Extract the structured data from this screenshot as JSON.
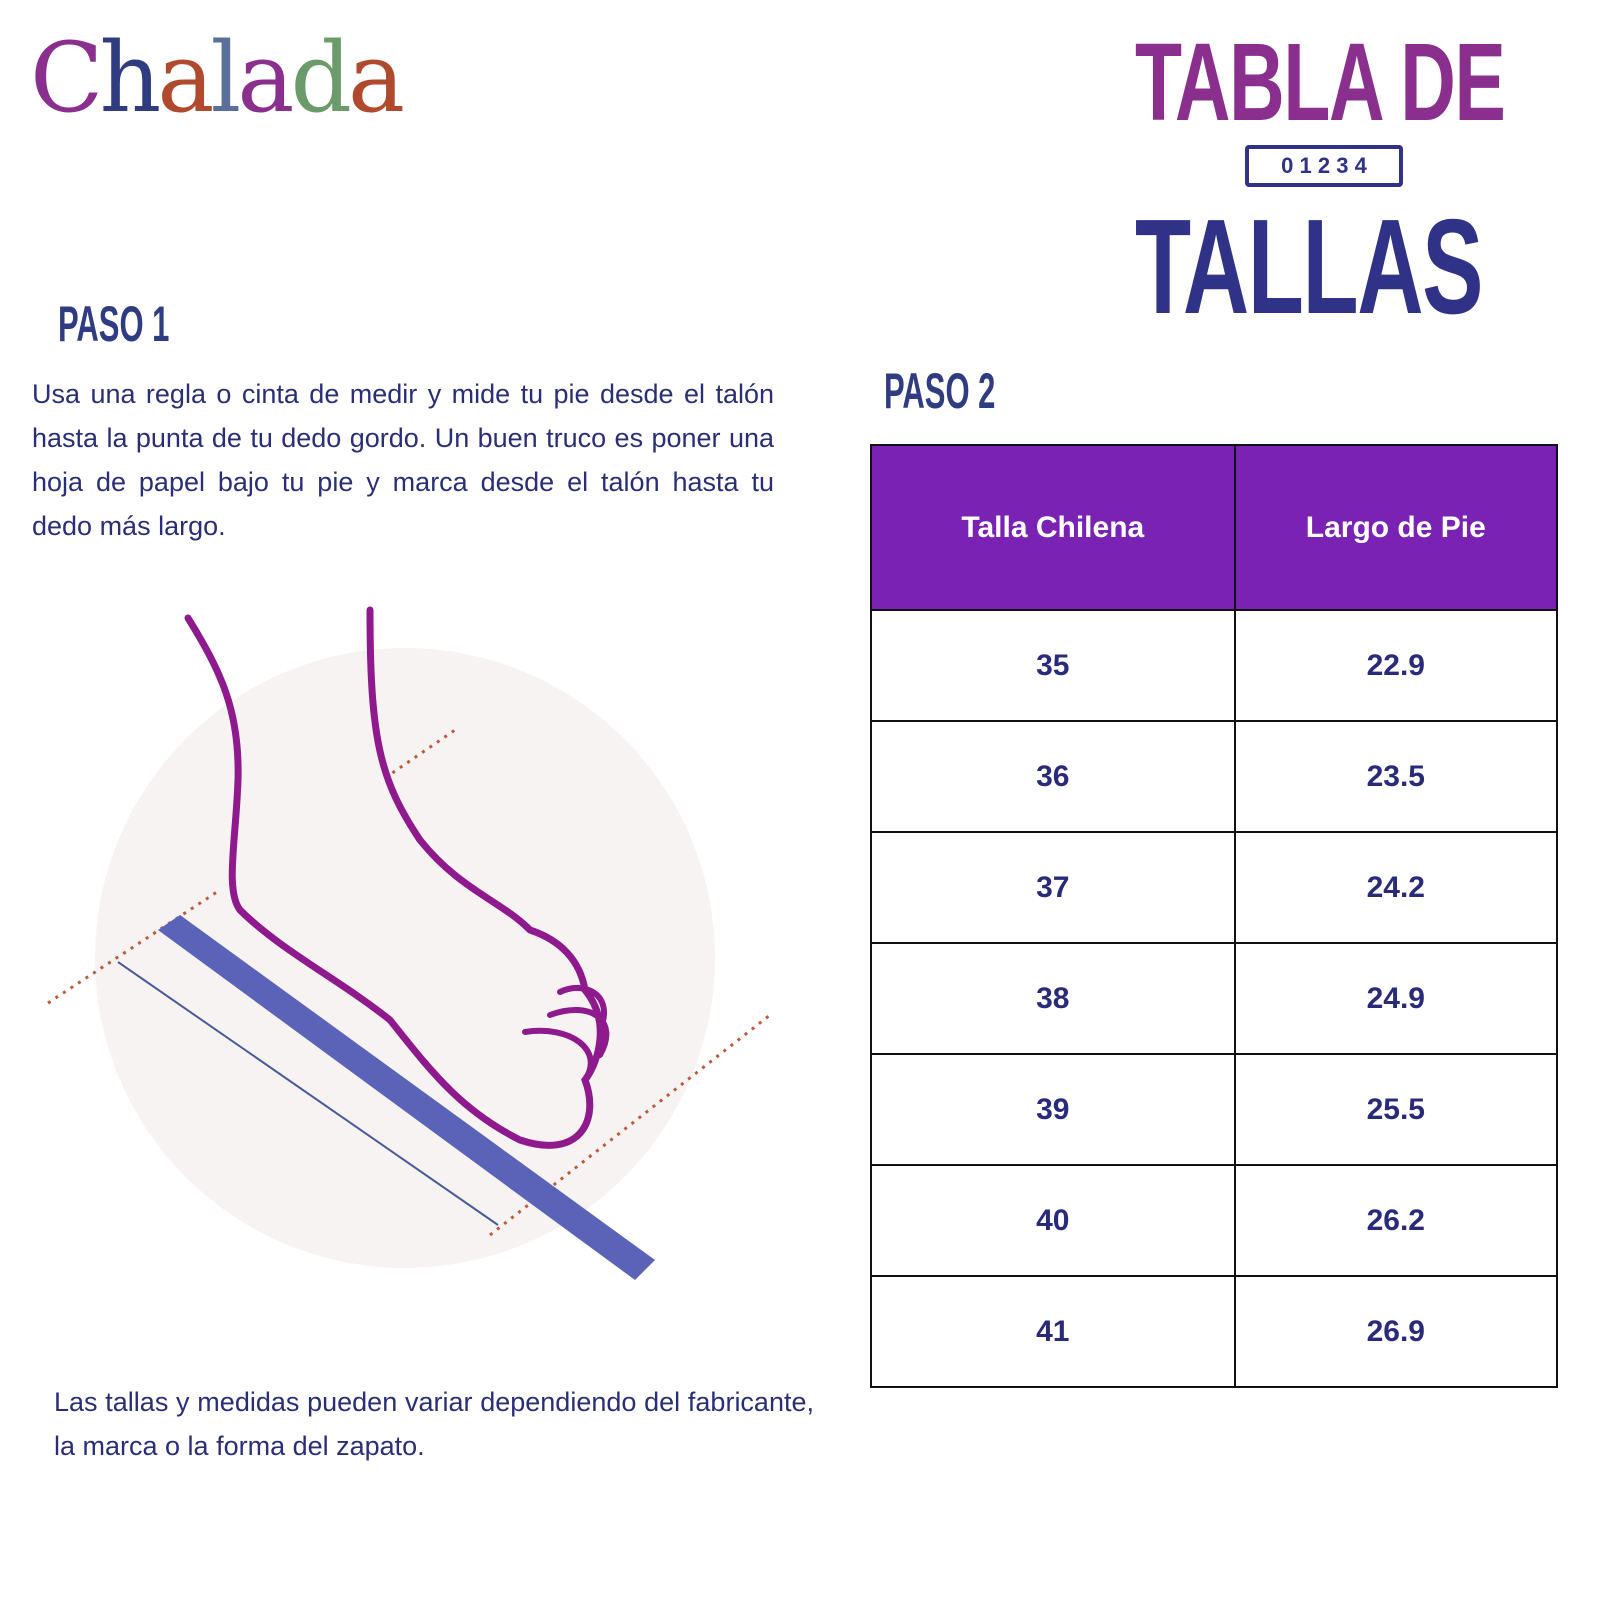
{
  "logo": {
    "text": "Chalada",
    "letters": [
      "C",
      "h",
      "a",
      "l",
      "a",
      "d",
      "a"
    ],
    "colors": [
      "#8a2f8e",
      "#2f3c82",
      "#b04a2e",
      "#5a6f9c",
      "#8a2f8e",
      "#6b9a6b",
      "#b04a2e"
    ]
  },
  "title": {
    "line1": "TABLA DE",
    "line2": "TALLAS",
    "ruler_digits": "0 1 2 3 4"
  },
  "step1": {
    "heading": "PASO 1",
    "instructions": "Usa una regla o cinta de medir y mide tu pie desde el talón hasta la punta de tu dedo gordo. Un buen truco es poner una hoja de papel bajo tu pie y marca desde el talón hasta tu dedo más largo.",
    "disclaimer": "Las tallas y medidas pueden variar dependiendo del fabricante, la marca o la forma del zapato."
  },
  "step2": {
    "heading": "PASO 2",
    "table": {
      "headers": [
        "Talla Chilena",
        "Largo de Pie"
      ],
      "rows": [
        [
          "35",
          "22.9"
        ],
        [
          "36",
          "23.5"
        ],
        [
          "37",
          "24.2"
        ],
        [
          "38",
          "24.9"
        ],
        [
          "39",
          "25.5"
        ],
        [
          "40",
          "26.2"
        ],
        [
          "41",
          "26.9"
        ]
      ]
    }
  },
  "colors": {
    "header_purple": "#7a22b3",
    "navy": "#2f3287",
    "magenta": "#8a2f8e",
    "foot_outline": "#8e1a8e",
    "ruler": "#5b63b8"
  }
}
